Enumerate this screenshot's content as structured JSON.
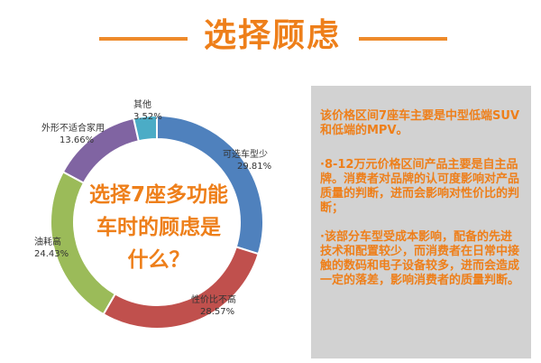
{
  "header": {
    "title": "选择顾虑"
  },
  "chart_data": {
    "type": "pie",
    "title": "选择7座多功能车时的顾虑是什么？",
    "title_lines": [
      "选择7座多功能",
      "车时的顾虑是",
      "什么？"
    ],
    "slices": [
      {
        "label": "可选车型少",
        "value": 29.81,
        "display": "29.81%",
        "color": "#4f81bd"
      },
      {
        "label": "性价比不高",
        "value": 28.57,
        "display": "28.57%",
        "color": "#c0504d"
      },
      {
        "label": "油耗高",
        "value": 24.43,
        "display": "24.43%",
        "color": "#9bbb59"
      },
      {
        "label": "外形不适合家用",
        "value": 13.66,
        "display": "13.66%",
        "color": "#8064a2"
      },
      {
        "label": "其他",
        "value": 3.52,
        "display": "3.52%",
        "color": "#4bacc6"
      }
    ]
  },
  "notes": {
    "p1": "该价格区间7座车主要是中型低端SUV和低端的MPV。",
    "p2": "·8-12万元价格区间产品主要是自主品牌。消费者对品牌的认可度影响对产品质量的判断，进而会影响对性价比的判断；",
    "p3": "·该部分车型受成本影响，配备的先进技术和配置较少，而消费者在日常中接触的数码和电子设备较多，进而会造成一定的落差，影响消费者的质量判断。"
  },
  "colors": {
    "accent": "#ee7f1a",
    "panel_bg": "#d2d2d2"
  }
}
